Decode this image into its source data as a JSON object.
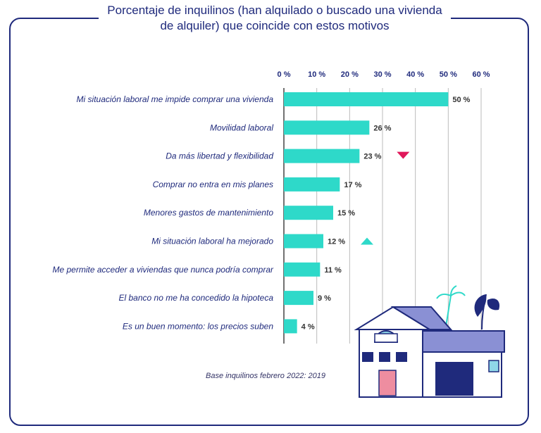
{
  "title": "Porcentaje de inquilinos (han alquilado o buscado una vivienda de alquiler) que coincide con estos motivos",
  "footnote": "Base inquilinos febrero 2022: 2019",
  "colors": {
    "bar": "#2ed9c9",
    "text": "#1f2a7c",
    "down": "#e0185a",
    "up": "#2ed9c9",
    "grid": "#bbbbbb"
  },
  "chart_data": {
    "type": "bar",
    "orientation": "horizontal",
    "title": "Porcentaje de inquilinos (han alquilado o buscado una vivienda de alquiler) que coincide con estos motivos",
    "categories": [
      "Mi situación laboral me impide comprar una vivienda",
      "Movilidad laboral",
      "Da más libertad y flexibilidad",
      "Comprar no entra en mis planes",
      "Menores gastos de mantenimiento",
      "Mi situación laboral ha mejorado",
      "Me permite acceder a viviendas que nunca podría comprar",
      "El banco no me ha concedido la hipoteca",
      "Es un buen momento: los precios suben"
    ],
    "values": [
      50,
      26,
      23,
      17,
      15,
      12,
      11,
      9,
      4
    ],
    "value_labels": [
      "50 %",
      "26 %",
      "23 %",
      "17 %",
      "15 %",
      "12 %",
      "11 %",
      "9 %",
      "4 %"
    ],
    "trend": [
      "",
      "",
      "down",
      "",
      "",
      "up",
      "",
      "",
      ""
    ],
    "xlim": [
      0,
      60
    ],
    "xticks": [
      "0 %",
      "10 %",
      "20 %",
      "30 %",
      "40 %",
      "50 %",
      "60 %"
    ],
    "grid": true
  }
}
